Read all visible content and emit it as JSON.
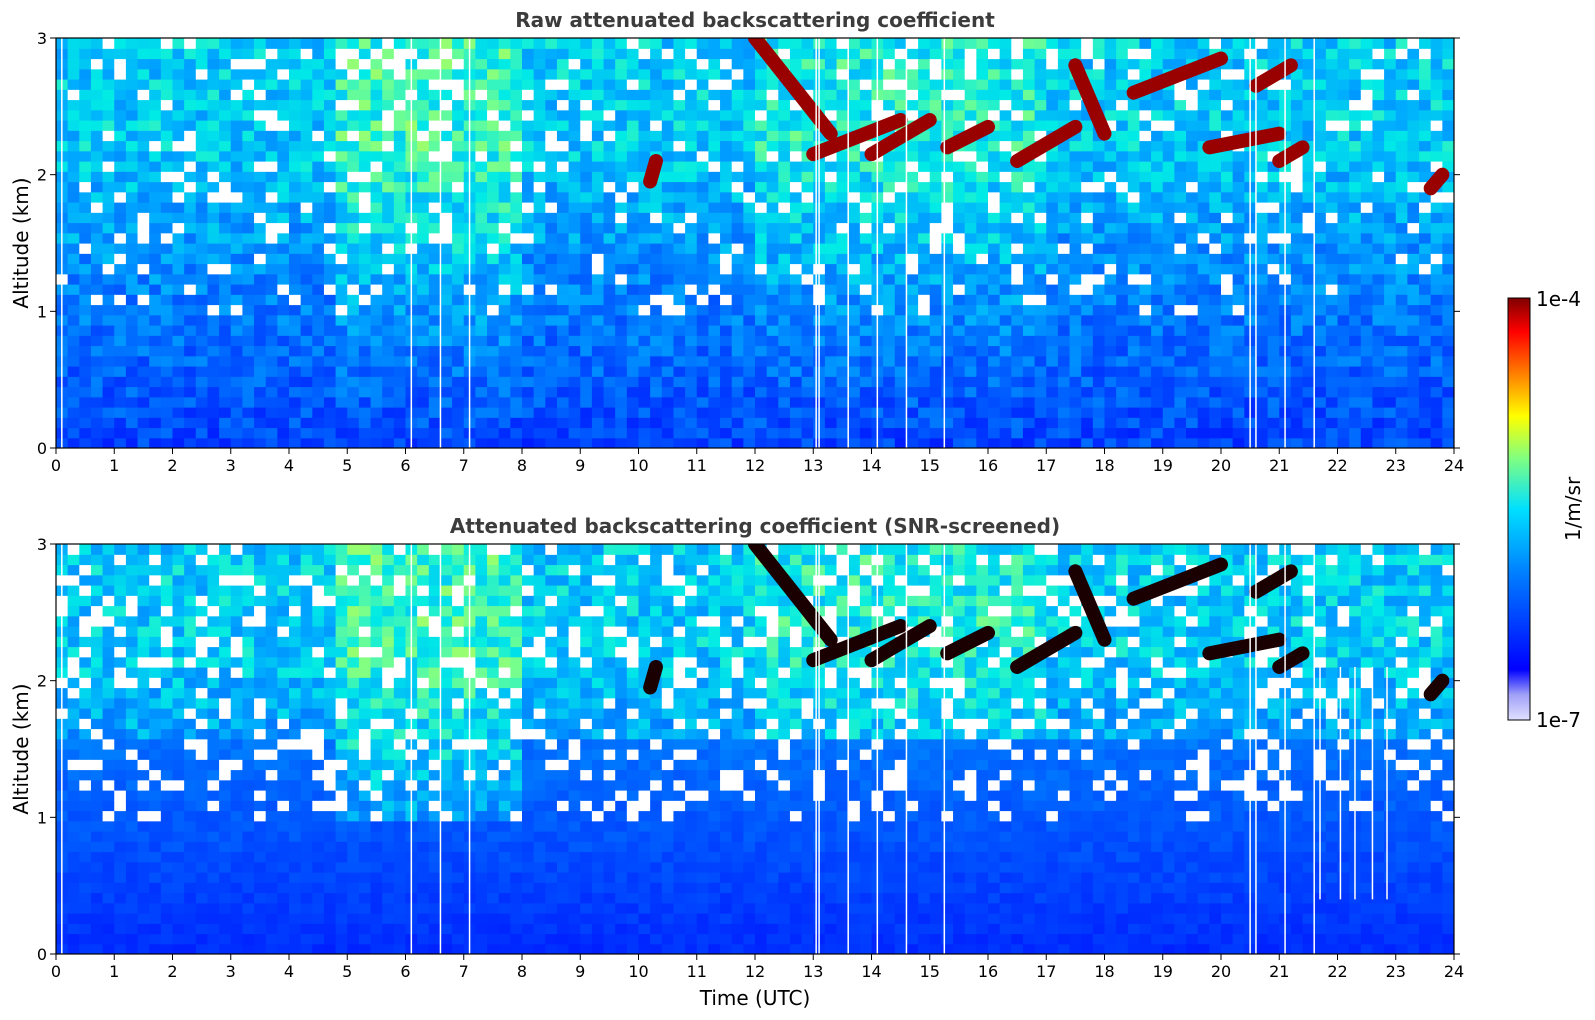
{
  "chart_data": [
    {
      "type": "heatmap",
      "title": "Raw attenuated backscattering coefficient",
      "xlabel": "",
      "ylabel": "Altitude (km)",
      "xlim": [
        0,
        24
      ],
      "ylim": [
        0,
        3
      ],
      "x_ticks": [
        "0",
        "1",
        "2",
        "3",
        "4",
        "5",
        "6",
        "7",
        "8",
        "9",
        "10",
        "11",
        "12",
        "13",
        "14",
        "15",
        "16",
        "17",
        "18",
        "19",
        "20",
        "21",
        "22",
        "23",
        "24"
      ],
      "y_ticks": [
        "0",
        "1",
        "2",
        "3"
      ],
      "gaps_utc": [
        0.1,
        6.1,
        6.6,
        7.1,
        13.05,
        13.1,
        13.6,
        14.1,
        14.6,
        15.25,
        20.5,
        20.6,
        21.1,
        21.6
      ],
      "cloud_features": [
        {
          "t_start": 12.0,
          "t_end": 13.3,
          "alt_start_km": 3.0,
          "alt_end_km": 2.3
        },
        {
          "t_start": 13.0,
          "t_end": 14.5,
          "alt_start_km": 2.15,
          "alt_end_km": 2.4
        },
        {
          "t_start": 14.0,
          "t_end": 15.0,
          "alt_start_km": 2.15,
          "alt_end_km": 2.4
        },
        {
          "t_start": 15.3,
          "t_end": 16.0,
          "alt_start_km": 2.2,
          "alt_end_km": 2.35
        },
        {
          "t_start": 16.5,
          "t_end": 17.5,
          "alt_start_km": 2.1,
          "alt_end_km": 2.35
        },
        {
          "t_start": 17.5,
          "t_end": 18.0,
          "alt_start_km": 2.8,
          "alt_end_km": 2.3
        },
        {
          "t_start": 18.5,
          "t_end": 20.0,
          "alt_start_km": 2.6,
          "alt_end_km": 2.85
        },
        {
          "t_start": 19.8,
          "t_end": 21.0,
          "alt_start_km": 2.2,
          "alt_end_km": 2.3
        },
        {
          "t_start": 21.0,
          "t_end": 21.4,
          "alt_start_km": 2.1,
          "alt_end_km": 2.2
        },
        {
          "t_start": 20.6,
          "t_end": 21.2,
          "alt_start_km": 2.65,
          "alt_end_km": 2.8
        },
        {
          "t_start": 10.2,
          "t_end": 10.3,
          "alt_start_km": 1.95,
          "alt_end_km": 2.1
        },
        {
          "t_start": 23.6,
          "t_end": 23.8,
          "alt_start_km": 1.9,
          "alt_end_km": 2.0
        }
      ]
    },
    {
      "type": "heatmap",
      "title": "Attenuated backscattering coefficient (SNR-screened)",
      "xlabel": "Time (UTC)",
      "ylabel": "Altitude (km)",
      "xlim": [
        0,
        24
      ],
      "ylim": [
        0,
        3
      ],
      "x_ticks": [
        "0",
        "1",
        "2",
        "3",
        "4",
        "5",
        "6",
        "7",
        "8",
        "9",
        "10",
        "11",
        "12",
        "13",
        "14",
        "15",
        "16",
        "17",
        "18",
        "19",
        "20",
        "21",
        "22",
        "23",
        "24"
      ],
      "y_ticks": [
        "0",
        "1",
        "2",
        "3"
      ],
      "gaps_utc": [
        0.1,
        6.1,
        6.6,
        7.1,
        13.05,
        13.1,
        13.6,
        14.1,
        14.6,
        15.25,
        20.5,
        20.6,
        21.1,
        21.6
      ],
      "partial_gaps_utc": [
        21.7,
        22.05,
        22.3,
        22.6,
        22.85
      ],
      "cloud_features": [
        {
          "t_start": 12.0,
          "t_end": 13.3,
          "alt_start_km": 3.0,
          "alt_end_km": 2.3
        },
        {
          "t_start": 13.0,
          "t_end": 14.5,
          "alt_start_km": 2.15,
          "alt_end_km": 2.4
        },
        {
          "t_start": 14.0,
          "t_end": 15.0,
          "alt_start_km": 2.15,
          "alt_end_km": 2.4
        },
        {
          "t_start": 15.3,
          "t_end": 16.0,
          "alt_start_km": 2.2,
          "alt_end_km": 2.35
        },
        {
          "t_start": 16.5,
          "t_end": 17.5,
          "alt_start_km": 2.1,
          "alt_end_km": 2.35
        },
        {
          "t_start": 17.5,
          "t_end": 18.0,
          "alt_start_km": 2.8,
          "alt_end_km": 2.3
        },
        {
          "t_start": 18.5,
          "t_end": 20.0,
          "alt_start_km": 2.6,
          "alt_end_km": 2.85
        },
        {
          "t_start": 19.8,
          "t_end": 21.0,
          "alt_start_km": 2.2,
          "alt_end_km": 2.3
        },
        {
          "t_start": 21.0,
          "t_end": 21.4,
          "alt_start_km": 2.1,
          "alt_end_km": 2.2
        },
        {
          "t_start": 20.6,
          "t_end": 21.2,
          "alt_start_km": 2.65,
          "alt_end_km": 2.8
        },
        {
          "t_start": 10.2,
          "t_end": 10.3,
          "alt_start_km": 1.95,
          "alt_end_km": 2.1
        },
        {
          "t_start": 23.6,
          "t_end": 23.8,
          "alt_start_km": 1.9,
          "alt_end_km": 2.0
        }
      ]
    }
  ],
  "colorbar": {
    "label": "1/m/sr",
    "max_label": "1e-4",
    "min_label": "1e-7",
    "scale": "log",
    "range": [
      1e-07,
      0.0001
    ],
    "colormap": "jet",
    "stops": [
      "#000080",
      "#0000ff",
      "#0080ff",
      "#00ffff",
      "#80ff80",
      "#ffff00",
      "#ff8000",
      "#ff0000",
      "#800000"
    ]
  }
}
